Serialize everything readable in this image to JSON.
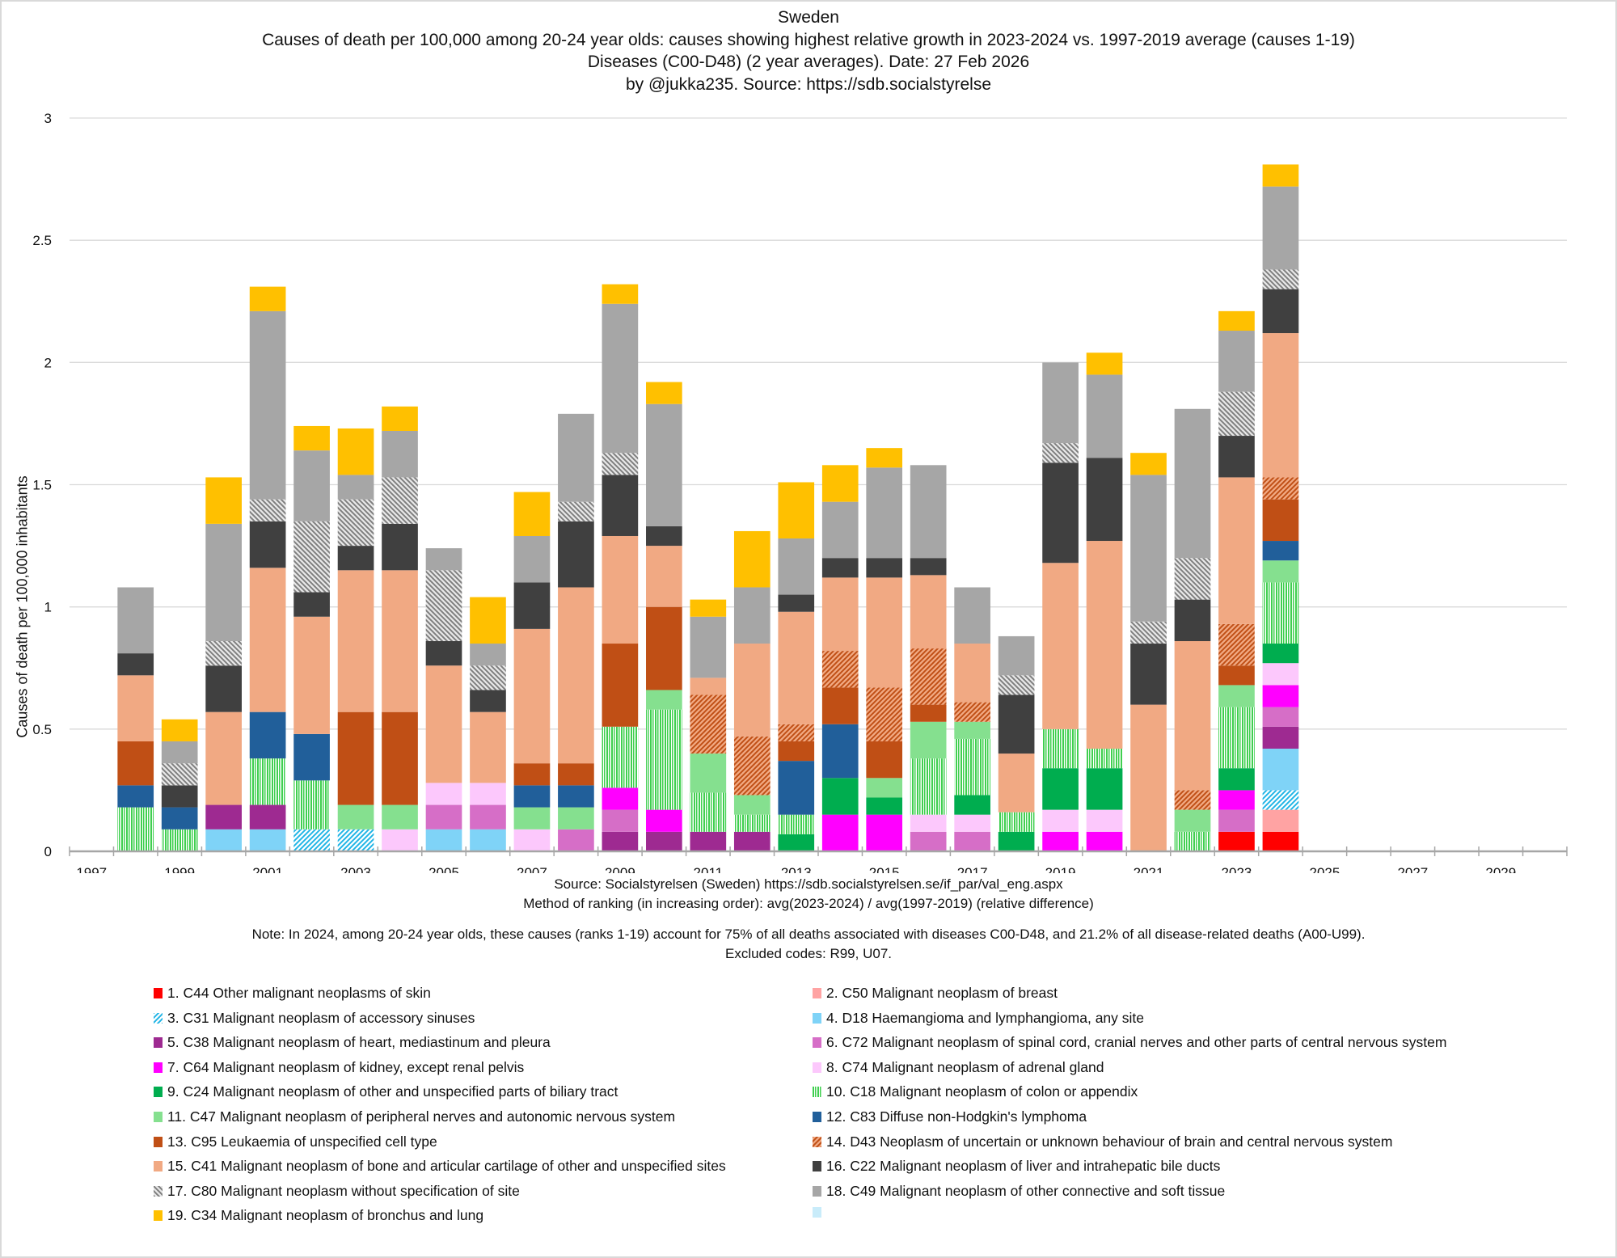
{
  "titles": {
    "country": "Sweden",
    "main": "Causes of death per 100,000 among  20-24 year olds: causes showing highest relative growth in 2023-2024 vs. 1997-2019 average   (causes 1-19)",
    "subtitle": "Diseases (C00-D48)  (2 year averages).  Date: 27 Feb 2026",
    "byline": "by @jukka235. Source: https://sdb.socialstyrelse"
  },
  "notes": {
    "source": "Source: Socialstyrelsen (Sweden)  https://sdb.socialstyrelsen.se/if_par/val_eng.aspx",
    "method": "Method of ranking (in increasing order): avg(2023-2024) / avg(1997-2019)   (relative difference)",
    "note": "Note: In 2024, among  20-24 year olds, these causes (ranks 1-19) account for 75% of all deaths associated with diseases C00-D48, and 21.2% of all disease-related deaths (A00-U99).",
    "excluded": "Excluded codes: R99, U07."
  },
  "chart_data": {
    "type": "bar",
    "stacked": true,
    "title": "Sweden",
    "xlabel": "",
    "ylabel": "Causes of death per 100,000 inhabitants",
    "ylim": [
      0,
      3
    ],
    "yticks": [
      "0",
      "0.5",
      "1",
      "1.5",
      "2",
      "2.5",
      "3"
    ],
    "grid": true,
    "legend_position": "bottom",
    "x_axis_years": [
      1997,
      1998,
      1999,
      2000,
      2001,
      2002,
      2003,
      2004,
      2005,
      2006,
      2007,
      2008,
      2009,
      2010,
      2011,
      2012,
      2013,
      2014,
      2015,
      2016,
      2017,
      2018,
      2019,
      2020,
      2021,
      2022,
      2023,
      2024,
      2025,
      2026,
      2027,
      2028,
      2029,
      2030
    ],
    "x_tick_labels": [
      "1997",
      "1999",
      "2001",
      "2003",
      "2005",
      "2007",
      "2009",
      "2011",
      "2013",
      "2015",
      "2017",
      "2019",
      "2021",
      "2023",
      "2025",
      "2027",
      "2029"
    ],
    "categories": [
      1998,
      1999,
      2000,
      2001,
      2002,
      2003,
      2004,
      2005,
      2006,
      2007,
      2008,
      2009,
      2010,
      2011,
      2012,
      2013,
      2014,
      2015,
      2016,
      2017,
      2018,
      2019,
      2020,
      2021,
      2022,
      2023,
      2024
    ],
    "series": [
      {
        "name": "1. C44 Other malignant neoplasms of skin",
        "color": "#ff0000",
        "pattern": "solid",
        "values": [
          0,
          0,
          0,
          0,
          0,
          0,
          0,
          0,
          0,
          0,
          0,
          0,
          0,
          0,
          0,
          0,
          0,
          0,
          0,
          0,
          0,
          0,
          0,
          0,
          0,
          0.08,
          0.08
        ]
      },
      {
        "name": "2. C50 Malignant neoplasm of breast",
        "color": "#ffa3a3",
        "pattern": "solid",
        "values": [
          0,
          0,
          0,
          0,
          0,
          0,
          0,
          0,
          0,
          0,
          0,
          0,
          0,
          0,
          0,
          0,
          0,
          0,
          0,
          0,
          0,
          0,
          0,
          0,
          0,
          0,
          0.09
        ]
      },
      {
        "name": "3. C31 Malignant neoplasm of accessory sinuses",
        "color": "#21b5e6",
        "pattern": "diag-up",
        "values": [
          0,
          0,
          0,
          0,
          0.09,
          0.09,
          0,
          0,
          0,
          0,
          0,
          0,
          0,
          0,
          0,
          0,
          0,
          0,
          0,
          0,
          0,
          0,
          0,
          0,
          0,
          0,
          0.08
        ]
      },
      {
        "name": "4. D18 Haemangioma and lymphangioma, any site",
        "color": "#7fd3f7",
        "pattern": "solid",
        "values": [
          0,
          0,
          0.09,
          0.09,
          0,
          0,
          0,
          0.09,
          0.09,
          0,
          0,
          0,
          0,
          0,
          0,
          0,
          0,
          0,
          0,
          0,
          0,
          0,
          0,
          0,
          0,
          0,
          0.17
        ]
      },
      {
        "name": "5. C38 Malignant neoplasm of heart, mediastinum and pleura",
        "color": "#9e2a91",
        "pattern": "solid",
        "values": [
          0,
          0,
          0.1,
          0.1,
          0,
          0,
          0,
          0,
          0,
          0,
          0,
          0.08,
          0.08,
          0.08,
          0.08,
          0,
          0,
          0,
          0,
          0,
          0,
          0,
          0,
          0,
          0,
          0,
          0.09
        ]
      },
      {
        "name": "6. C72 Malignant neoplasm of spinal cord, cranial nerves and other parts of central nervous system",
        "color": "#d66ec7",
        "pattern": "solid",
        "values": [
          0,
          0,
          0,
          0,
          0,
          0,
          0,
          0.1,
          0.1,
          0,
          0.09,
          0.09,
          0,
          0,
          0,
          0,
          0,
          0,
          0.08,
          0.08,
          0,
          0,
          0,
          0,
          0,
          0.09,
          0.08
        ]
      },
      {
        "name": "7. C64 Malignant neoplasm of kidney, except renal pelvis",
        "color": "#ff00ff",
        "pattern": "solid",
        "values": [
          0,
          0,
          0,
          0,
          0,
          0,
          0,
          0,
          0,
          0,
          0,
          0.09,
          0.09,
          0,
          0,
          0,
          0.15,
          0.15,
          0,
          0,
          0,
          0.08,
          0.08,
          0,
          0,
          0.08,
          0.09
        ]
      },
      {
        "name": "8. C74 Malignant neoplasm of adrenal gland",
        "color": "#fcc8fc",
        "pattern": "solid",
        "values": [
          0,
          0,
          0,
          0,
          0,
          0,
          0.09,
          0.09,
          0.09,
          0.09,
          0,
          0,
          0,
          0,
          0,
          0,
          0,
          0,
          0.07,
          0.07,
          0,
          0.09,
          0.09,
          0,
          0,
          0,
          0.09
        ]
      },
      {
        "name": "9. C24 Malignant neoplasm of other and unspecified parts of biliary tract",
        "color": "#00ad4f",
        "pattern": "solid",
        "values": [
          0,
          0,
          0,
          0,
          0,
          0,
          0,
          0,
          0,
          0,
          0,
          0,
          0,
          0,
          0,
          0.07,
          0.15,
          0.07,
          0,
          0.08,
          0.08,
          0.17,
          0.17,
          0,
          0,
          0.09,
          0.08
        ]
      },
      {
        "name": "10. C18 Malignant neoplasm of colon or appendix",
        "color": "#3fcf4f",
        "pattern": "vertical",
        "values": [
          0.18,
          0.09,
          0,
          0.19,
          0.2,
          0,
          0,
          0,
          0,
          0,
          0,
          0.25,
          0.41,
          0.16,
          0.07,
          0.08,
          0,
          0,
          0.23,
          0.23,
          0.08,
          0.16,
          0.08,
          0,
          0.08,
          0.25,
          0.25
        ]
      },
      {
        "name": "11. C47 Malignant neoplasm of peripheral nerves and autonomic nervous system",
        "color": "#85e08f",
        "pattern": "solid",
        "values": [
          0,
          0,
          0,
          0,
          0,
          0.1,
          0.1,
          0,
          0,
          0.09,
          0.09,
          0,
          0.08,
          0.16,
          0.08,
          0,
          0,
          0.08,
          0.15,
          0.07,
          0,
          0,
          0,
          0,
          0.09,
          0.09,
          0.09
        ]
      },
      {
        "name": "12. C83 Diffuse non-Hodgkin's lymphoma",
        "color": "#215f9a",
        "pattern": "solid",
        "values": [
          0.09,
          0.09,
          0,
          0.19,
          0.19,
          0,
          0,
          0,
          0,
          0.09,
          0.09,
          0,
          0,
          0,
          0,
          0.22,
          0.22,
          0,
          0,
          0,
          0,
          0,
          0,
          0,
          0,
          0,
          0.08
        ]
      },
      {
        "name": "13. C95 Leukaemia of unspecified cell type",
        "color": "#c04f15",
        "pattern": "solid",
        "values": [
          0.18,
          0,
          0,
          0,
          0,
          0.38,
          0.38,
          0,
          0,
          0.09,
          0.09,
          0.34,
          0.34,
          0,
          0,
          0.08,
          0.15,
          0.15,
          0.07,
          0,
          0,
          0,
          0,
          0,
          0,
          0.08,
          0.17
        ]
      },
      {
        "name": "14. D43 Neoplasm of uncertain or unknown behaviour of brain and central nervous system",
        "color": "#c04f15",
        "pattern": "diag-up-light",
        "values": [
          0,
          0,
          0,
          0,
          0,
          0,
          0,
          0,
          0,
          0,
          0,
          0,
          0,
          0.24,
          0.24,
          0.07,
          0.15,
          0.22,
          0.23,
          0.08,
          0,
          0,
          0,
          0,
          0.08,
          0.17,
          0.09
        ]
      },
      {
        "name": "15. C41 Malignant neoplasm of bone and articular cartilage of other and unspecified sites",
        "color": "#f1a983",
        "pattern": "solid",
        "values": [
          0.27,
          0,
          0.38,
          0.59,
          0.48,
          0.58,
          0.58,
          0.48,
          0.29,
          0.55,
          0.72,
          0.44,
          0.25,
          0.07,
          0.38,
          0.46,
          0.3,
          0.45,
          0.3,
          0.24,
          0.24,
          0.68,
          0.85,
          0.6,
          0.61,
          0.6,
          0.59
        ]
      },
      {
        "name": "16. C22 Malignant neoplasm of liver and intrahepatic bile ducts",
        "color": "#404040",
        "pattern": "solid",
        "values": [
          0.09,
          0.09,
          0.19,
          0.19,
          0.1,
          0.1,
          0.19,
          0.1,
          0.09,
          0.19,
          0.27,
          0.25,
          0.08,
          0,
          0,
          0.07,
          0.08,
          0.08,
          0.07,
          0,
          0.24,
          0.41,
          0.34,
          0.25,
          0.17,
          0.17,
          0.18
        ]
      },
      {
        "name": "17. C80 Malignant neoplasm without specification of site",
        "color": "#a6a6a6",
        "pattern": "diag-down",
        "values": [
          0,
          0.09,
          0.1,
          0.09,
          0.29,
          0.19,
          0.19,
          0.29,
          0.1,
          0,
          0.08,
          0.09,
          0,
          0,
          0,
          0,
          0,
          0,
          0,
          0,
          0.08,
          0.08,
          0,
          0.09,
          0.17,
          0.18,
          0.08
        ]
      },
      {
        "name": "18. C49 Malignant neoplasm of other connective and soft tissue",
        "color": "#a6a6a6",
        "pattern": "solid",
        "values": [
          0.27,
          0.09,
          0.48,
          0.77,
          0.29,
          0.1,
          0.19,
          0.09,
          0.09,
          0.19,
          0.36,
          0.61,
          0.5,
          0.25,
          0.23,
          0.23,
          0.23,
          0.37,
          0.38,
          0.23,
          0.16,
          0.33,
          0.34,
          0.6,
          0.61,
          0.25,
          0.34
        ]
      },
      {
        "name": "19. C34 Malignant neoplasm of bronchus and lung",
        "color": "#ffc000",
        "pattern": "solid",
        "values": [
          0,
          0.09,
          0.19,
          0.1,
          0.1,
          0.19,
          0.1,
          0,
          0.19,
          0.18,
          0,
          0.08,
          0.09,
          0.07,
          0.23,
          0.23,
          0.15,
          0.08,
          0,
          0,
          0,
          0,
          0.09,
          0.09,
          0,
          0.08,
          0.09
        ]
      },
      {
        "name": "",
        "color": "#c9ecfa",
        "pattern": "solid",
        "values": []
      }
    ]
  }
}
